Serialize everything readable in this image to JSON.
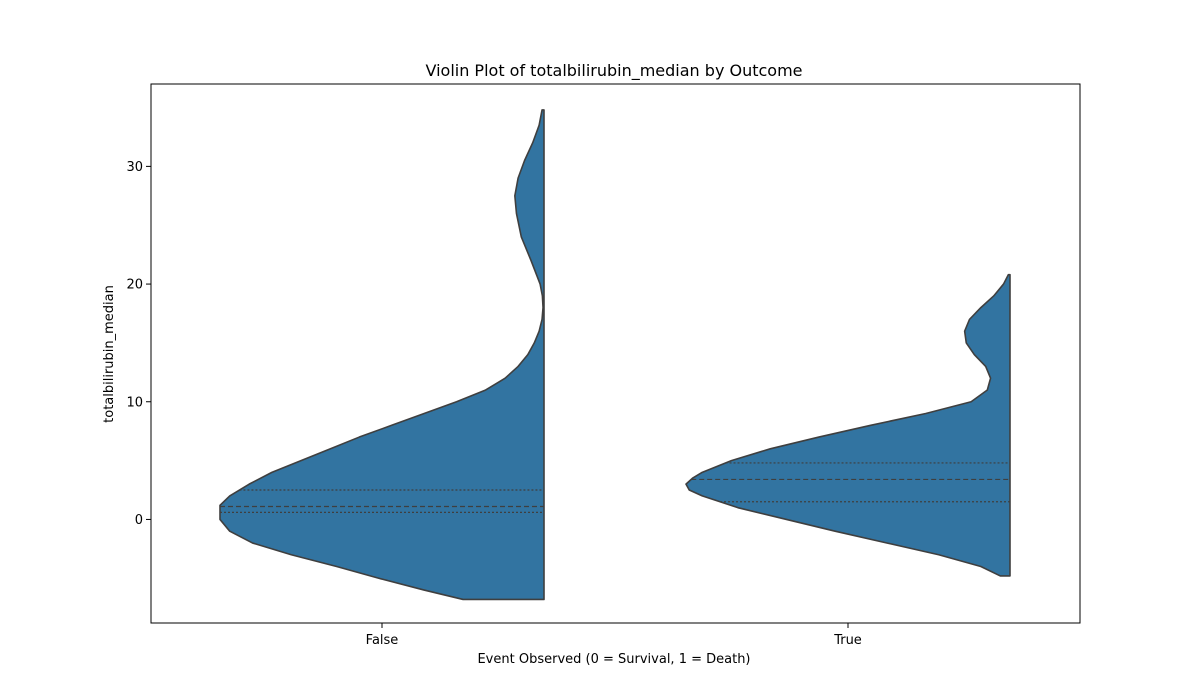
{
  "chart_data": {
    "type": "violin",
    "title": "Violin Plot of totalbilirubin_median by Outcome",
    "xlabel": "Event Observed (0 = Survival, 1 = Death)",
    "ylabel": "totalbilirubin_median",
    "ylim": [
      -8.8,
      37
    ],
    "yticks": [
      0,
      10,
      20,
      30
    ],
    "categories": [
      "False",
      "True"
    ],
    "split": "half-violin (left side)",
    "inner": "quartile",
    "grid": false,
    "colors": {
      "fill": "#3274a1",
      "edge": "#3f3f3f",
      "quartile": "#3f3f3f"
    },
    "violins": [
      {
        "category": "False",
        "range": [
          -6.8,
          34.8
        ],
        "quartiles": {
          "q1": 0.6,
          "median": 1.1,
          "q3": 2.5
        },
        "profile": [
          [
            -6.8,
            0.25
          ],
          [
            -6.0,
            0.37
          ],
          [
            -5.0,
            0.51
          ],
          [
            -4.0,
            0.64
          ],
          [
            -3.0,
            0.78
          ],
          [
            -2.0,
            0.9
          ],
          [
            -1.0,
            0.97
          ],
          [
            0.0,
            1.0
          ],
          [
            1.0,
            1.0
          ],
          [
            1.2,
            1.0
          ],
          [
            2.0,
            0.97
          ],
          [
            3.0,
            0.91
          ],
          [
            4.0,
            0.84
          ],
          [
            5.0,
            0.75
          ],
          [
            6.0,
            0.66
          ],
          [
            7.0,
            0.57
          ],
          [
            8.0,
            0.47
          ],
          [
            9.0,
            0.37
          ],
          [
            10.0,
            0.27
          ],
          [
            11.0,
            0.18
          ],
          [
            12.0,
            0.12
          ],
          [
            13.0,
            0.08
          ],
          [
            14.0,
            0.05
          ],
          [
            15.0,
            0.03
          ],
          [
            16.0,
            0.015
          ],
          [
            17.0,
            0.006
          ],
          [
            18.0,
            0.003
          ],
          [
            19.0,
            0.005
          ],
          [
            20.0,
            0.012
          ],
          [
            22.0,
            0.04
          ],
          [
            24.0,
            0.07
          ],
          [
            26.0,
            0.085
          ],
          [
            27.5,
            0.09
          ],
          [
            29.0,
            0.08
          ],
          [
            30.5,
            0.06
          ],
          [
            32.0,
            0.035
          ],
          [
            33.5,
            0.015
          ],
          [
            34.8,
            0.006
          ]
        ]
      },
      {
        "category": "True",
        "range": [
          -4.8,
          20.8
        ],
        "quartiles": {
          "q1": 1.5,
          "median": 3.4,
          "q3": 4.8
        },
        "profile": [
          [
            -4.8,
            0.03
          ],
          [
            -4.0,
            0.09
          ],
          [
            -3.0,
            0.22
          ],
          [
            -2.0,
            0.38
          ],
          [
            -1.0,
            0.54
          ],
          [
            0.0,
            0.69
          ],
          [
            1.0,
            0.84
          ],
          [
            2.0,
            0.95
          ],
          [
            2.5,
            0.99
          ],
          [
            3.0,
            1.0
          ],
          [
            3.5,
            0.98
          ],
          [
            4.0,
            0.95
          ],
          [
            5.0,
            0.86
          ],
          [
            6.0,
            0.74
          ],
          [
            7.0,
            0.59
          ],
          [
            8.0,
            0.43
          ],
          [
            9.0,
            0.26
          ],
          [
            10.0,
            0.12
          ],
          [
            11.0,
            0.07
          ],
          [
            12.0,
            0.06
          ],
          [
            13.0,
            0.075
          ],
          [
            14.0,
            0.11
          ],
          [
            15.0,
            0.135
          ],
          [
            16.0,
            0.14
          ],
          [
            17.0,
            0.125
          ],
          [
            18.0,
            0.09
          ],
          [
            19.0,
            0.05
          ],
          [
            20.0,
            0.02
          ],
          [
            20.8,
            0.005
          ]
        ]
      }
    ]
  }
}
